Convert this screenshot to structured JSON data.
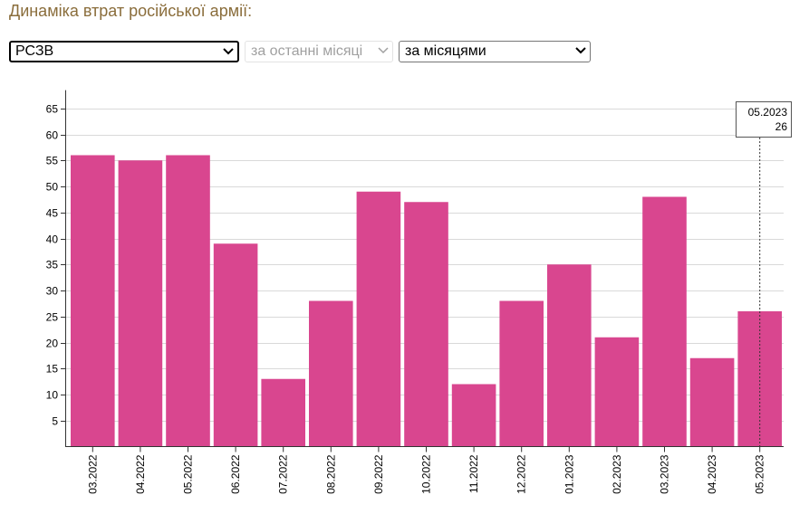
{
  "header": {
    "title": "Динаміка втрат російської армії:"
  },
  "filters": {
    "type_selected": "РСЗВ",
    "period_selected": "за останні місяці",
    "grouping_selected": "за місяцями"
  },
  "tooltip": {
    "date": "05.2023",
    "value": "26"
  },
  "colors": {
    "bar": "#d9468f",
    "grid": "#d9d9d9",
    "axis": "#333333",
    "title": "#8a6d3b"
  },
  "chart_data": {
    "type": "bar",
    "categories": [
      "03.2022",
      "04.2022",
      "05.2022",
      "06.2022",
      "07.2022",
      "08.2022",
      "09.2022",
      "10.2022",
      "11.2022",
      "12.2022",
      "01.2023",
      "02.2023",
      "03.2023",
      "04.2023",
      "05.2023"
    ],
    "values": [
      56,
      55,
      56,
      39,
      13,
      28,
      49,
      47,
      12,
      28,
      35,
      21,
      48,
      17,
      26
    ],
    "yticks": [
      5,
      10,
      15,
      20,
      25,
      30,
      35,
      40,
      45,
      50,
      55,
      60,
      65
    ],
    "ylim": [
      0,
      68.5
    ],
    "grid": true,
    "highlighted_category": "05.2023"
  }
}
